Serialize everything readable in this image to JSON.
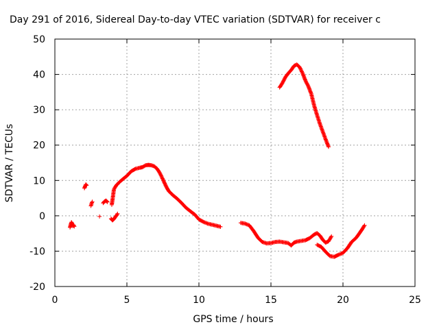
{
  "chart_data": {
    "type": "scatter",
    "title": "Day 291 of 2016, Sidereal Day-to-day VTEC variation (SDTVAR) for receiver c",
    "xlabel": "GPS time / hours",
    "ylabel": "SDTVAR / TECUs",
    "xlim": [
      0,
      25
    ],
    "ylim": [
      -20,
      50
    ],
    "xticks": [
      "0",
      "5",
      "10",
      "15",
      "20",
      "25"
    ],
    "yticks": [
      "-20",
      "-10",
      "0",
      "10",
      "20",
      "30",
      "40",
      "50"
    ],
    "grid": true,
    "marker": "+",
    "series": [
      {
        "name": "SDTVAR",
        "color": "#ff0000",
        "segments": [
          [
            [
              1.05,
              -3.3
            ],
            [
              1.1,
              -2.5
            ],
            [
              1.15,
              -1.8
            ],
            [
              1.2,
              -2.2
            ],
            [
              1.25,
              -2.9
            ],
            [
              1.3,
              -2.6
            ],
            [
              1.35,
              -3.0
            ]
          ],
          [
            [
              2.05,
              7.8
            ],
            [
              2.1,
              8.4
            ],
            [
              2.15,
              8.9
            ],
            [
              2.2,
              8.6
            ]
          ],
          [
            [
              2.5,
              2.8
            ],
            [
              2.55,
              3.5
            ],
            [
              2.6,
              4.0
            ]
          ],
          [
            [
              3.1,
              -0.2
            ]
          ],
          [
            [
              3.35,
              3.6
            ],
            [
              3.45,
              4.1
            ],
            [
              3.55,
              4.3
            ],
            [
              3.65,
              3.9
            ]
          ],
          [
            [
              3.9,
              -0.8
            ],
            [
              4.0,
              -1.3
            ],
            [
              4.1,
              -0.9
            ],
            [
              4.2,
              -0.3
            ],
            [
              4.3,
              0.2
            ],
            [
              4.35,
              0.6
            ]
          ],
          [
            [
              3.95,
              3.1
            ],
            [
              4.0,
              4.5
            ],
            [
              4.05,
              6.0
            ],
            [
              4.1,
              7.5
            ],
            [
              4.2,
              8.2
            ],
            [
              4.3,
              8.8
            ],
            [
              4.5,
              9.6
            ],
            [
              4.7,
              10.3
            ],
            [
              5.0,
              11.3
            ],
            [
              5.3,
              12.6
            ],
            [
              5.6,
              13.3
            ],
            [
              5.9,
              13.6
            ],
            [
              6.1,
              13.8
            ],
            [
              6.3,
              14.3
            ],
            [
              6.5,
              14.4
            ],
            [
              6.7,
              14.3
            ],
            [
              6.9,
              14.0
            ],
            [
              7.1,
              13.3
            ],
            [
              7.3,
              12.0
            ],
            [
              7.5,
              10.3
            ],
            [
              7.7,
              8.5
            ],
            [
              7.9,
              7.0
            ],
            [
              8.2,
              5.8
            ],
            [
              8.5,
              4.8
            ],
            [
              8.8,
              3.6
            ],
            [
              9.1,
              2.3
            ],
            [
              9.4,
              1.3
            ],
            [
              9.7,
              0.4
            ],
            [
              10.0,
              -1.0
            ],
            [
              10.3,
              -1.7
            ],
            [
              10.6,
              -2.2
            ],
            [
              10.9,
              -2.5
            ],
            [
              11.2,
              -2.8
            ],
            [
              11.5,
              -3.1
            ]
          ],
          [
            [
              12.9,
              -2.0
            ],
            [
              13.2,
              -2.2
            ],
            [
              13.5,
              -2.7
            ],
            [
              13.8,
              -4.3
            ],
            [
              14.1,
              -6.2
            ],
            [
              14.4,
              -7.4
            ],
            [
              14.7,
              -7.8
            ],
            [
              15.0,
              -7.7
            ],
            [
              15.3,
              -7.4
            ],
            [
              15.6,
              -7.3
            ],
            [
              15.9,
              -7.5
            ],
            [
              16.2,
              -7.7
            ],
            [
              16.4,
              -8.4
            ],
            [
              16.6,
              -7.6
            ],
            [
              16.8,
              -7.3
            ],
            [
              17.1,
              -7.1
            ],
            [
              17.4,
              -6.9
            ],
            [
              17.7,
              -6.3
            ],
            [
              18.0,
              -5.3
            ],
            [
              18.2,
              -4.9
            ],
            [
              18.4,
              -5.6
            ],
            [
              18.6,
              -6.8
            ],
            [
              18.8,
              -7.6
            ],
            [
              19.0,
              -7.2
            ],
            [
              19.2,
              -5.8
            ]
          ],
          [
            [
              18.2,
              -8.2
            ],
            [
              18.5,
              -8.8
            ],
            [
              18.8,
              -10.2
            ],
            [
              19.1,
              -11.4
            ],
            [
              19.4,
              -11.6
            ],
            [
              19.7,
              -11.0
            ],
            [
              20.0,
              -10.5
            ],
            [
              20.3,
              -9.2
            ],
            [
              20.6,
              -7.4
            ],
            [
              20.9,
              -6.3
            ],
            [
              21.1,
              -5.2
            ],
            [
              21.3,
              -4.0
            ],
            [
              21.5,
              -2.7
            ]
          ],
          [
            [
              15.6,
              36.3
            ],
            [
              15.8,
              37.6
            ],
            [
              16.0,
              39.2
            ],
            [
              16.2,
              40.3
            ],
            [
              16.4,
              41.2
            ],
            [
              16.6,
              42.4
            ],
            [
              16.8,
              42.8
            ],
            [
              17.0,
              42.0
            ],
            [
              17.2,
              40.3
            ],
            [
              17.4,
              38.2
            ],
            [
              17.6,
              36.6
            ],
            [
              17.8,
              34.5
            ],
            [
              18.0,
              31.2
            ],
            [
              18.2,
              28.5
            ],
            [
              18.4,
              26.0
            ],
            [
              18.6,
              23.8
            ],
            [
              18.8,
              21.6
            ],
            [
              19.0,
              19.5
            ]
          ]
        ]
      }
    ]
  }
}
